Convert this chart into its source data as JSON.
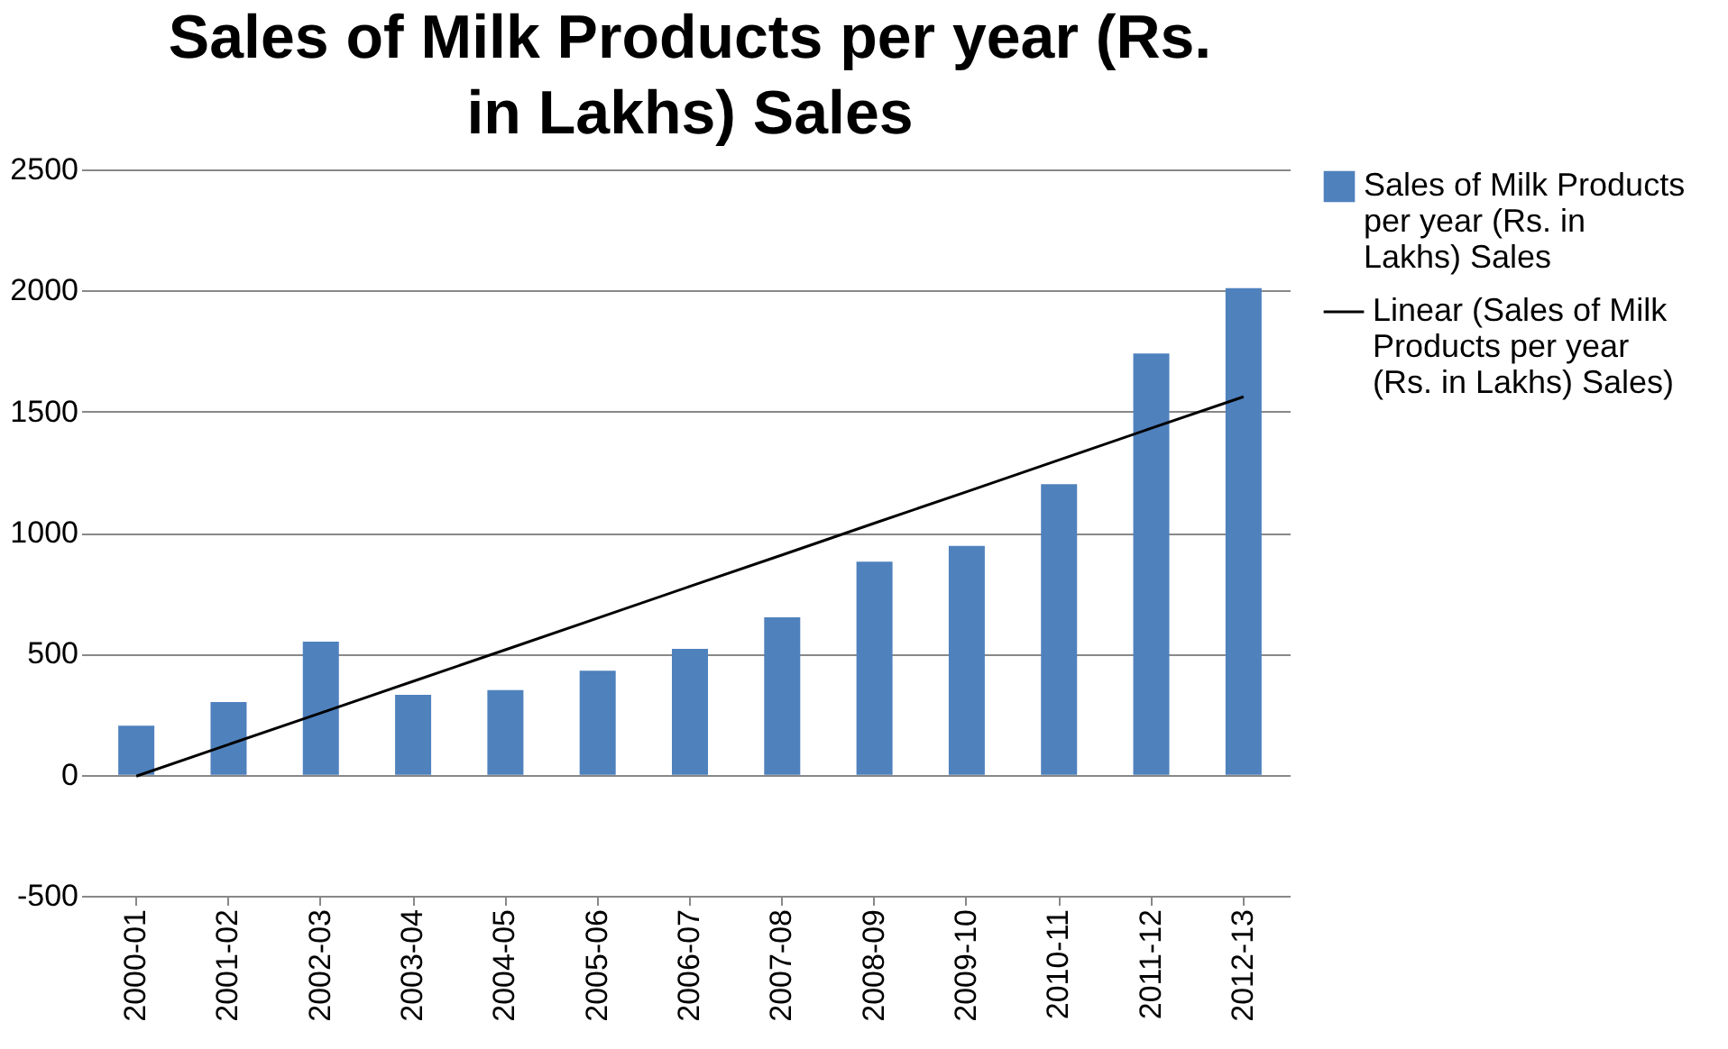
{
  "chart_data": {
    "type": "bar",
    "title": "Sales of Milk Products per year  (Rs. in Lakhs) Sales",
    "categories": [
      "2000-01",
      "2001-02",
      "2002-03",
      "2003-04",
      "2004-05",
      "2005-06",
      "2006-07",
      "2007-08",
      "2008-09",
      "2009-10",
      "2010-11",
      "2011-12",
      "2012-13"
    ],
    "series": [
      {
        "name": "Sales of Milk Products per year  (Rs. in Lakhs) Sales",
        "color": "#4f81bd",
        "values": [
          203,
          300,
          550,
          330,
          350,
          430,
          520,
          650,
          880,
          945,
          1200,
          1740,
          2010
        ]
      },
      {
        "type": "line",
        "name": "Linear (Sales of Milk Products per year  (Rs. in Lakhs) Sales)",
        "color": "#000000",
        "values": [
          -6,
          125,
          255,
          386,
          516,
          647,
          778,
          908,
          1039,
          1169,
          1300,
          1431,
          1561
        ]
      }
    ],
    "ylim": [
      -500,
      2500
    ],
    "yticks": [
      -500,
      0,
      500,
      1000,
      1500,
      2000,
      2500
    ],
    "grid": "y",
    "legend": "right"
  }
}
